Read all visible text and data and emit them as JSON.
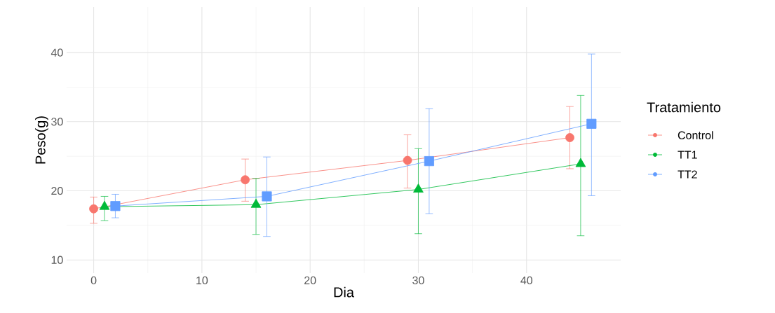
{
  "chart_data": {
    "type": "line",
    "xlabel": "Dia",
    "ylabel": "Peso(g)",
    "legend_title": "Tratamiento",
    "legend": "right",
    "grid": true,
    "xlim": [
      -2.5,
      48.7
    ],
    "ylim": [
      8.1,
      46.6
    ],
    "xticks": [
      0,
      10,
      20,
      30,
      40
    ],
    "yticks": [
      10,
      20,
      30,
      40
    ],
    "series": [
      {
        "name": "Control",
        "color": "#f8766d",
        "marker": "circle",
        "x": [
          0,
          14,
          29,
          44
        ],
        "values": [
          17.4,
          21.6,
          24.4,
          27.7
        ],
        "errors": [
          [
            15.3,
            19.1
          ],
          [
            18.5,
            24.6
          ],
          [
            20.4,
            28.1
          ],
          [
            23.2,
            32.2
          ]
        ]
      },
      {
        "name": "TT1",
        "color": "#00ba38",
        "marker": "triangle",
        "x": [
          1,
          15,
          30,
          45
        ],
        "values": [
          17.7,
          18.0,
          20.2,
          23.9
        ],
        "errors": [
          [
            15.7,
            19.2
          ],
          [
            13.7,
            21.8
          ],
          [
            13.8,
            26.1
          ],
          [
            13.5,
            33.8
          ]
        ]
      },
      {
        "name": "TT2",
        "color": "#619cff",
        "marker": "square",
        "x": [
          2,
          16,
          31,
          46
        ],
        "values": [
          17.8,
          19.2,
          24.3,
          29.7
        ],
        "errors": [
          [
            16.1,
            19.5
          ],
          [
            13.4,
            24.9
          ],
          [
            16.7,
            31.9
          ],
          [
            19.3,
            39.8
          ]
        ]
      }
    ]
  }
}
